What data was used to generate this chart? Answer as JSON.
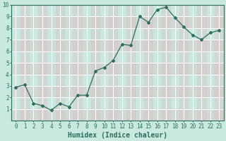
{
  "x": [
    0,
    1,
    2,
    3,
    4,
    5,
    6,
    7,
    8,
    9,
    10,
    11,
    12,
    13,
    14,
    15,
    16,
    17,
    18,
    19,
    20,
    21,
    22,
    23
  ],
  "y": [
    2.9,
    3.1,
    1.5,
    1.3,
    0.9,
    1.5,
    1.2,
    2.2,
    2.2,
    4.3,
    4.6,
    5.2,
    6.6,
    6.5,
    9.0,
    8.5,
    9.6,
    9.8,
    8.9,
    8.1,
    7.4,
    7.0,
    7.6,
    7.8
  ],
  "line_color": "#2d6e5e",
  "marker": "D",
  "marker_size": 2.0,
  "bg_color": "#c8e8e0",
  "grid_color": "#ffffff",
  "cell_alt_color": "#ddbfbf",
  "xlabel": "Humidex (Indice chaleur)",
  "ylim": [
    0,
    10
  ],
  "xlim": [
    -0.5,
    23.5
  ],
  "yticks": [
    1,
    2,
    3,
    4,
    5,
    6,
    7,
    8,
    9,
    10
  ],
  "xticks": [
    0,
    1,
    2,
    3,
    4,
    5,
    6,
    7,
    8,
    9,
    10,
    11,
    12,
    13,
    14,
    15,
    16,
    17,
    18,
    19,
    20,
    21,
    22,
    23
  ],
  "tick_label_fontsize": 5.5,
  "xlabel_fontsize": 7.0,
  "xlabel_fontweight": "bold"
}
